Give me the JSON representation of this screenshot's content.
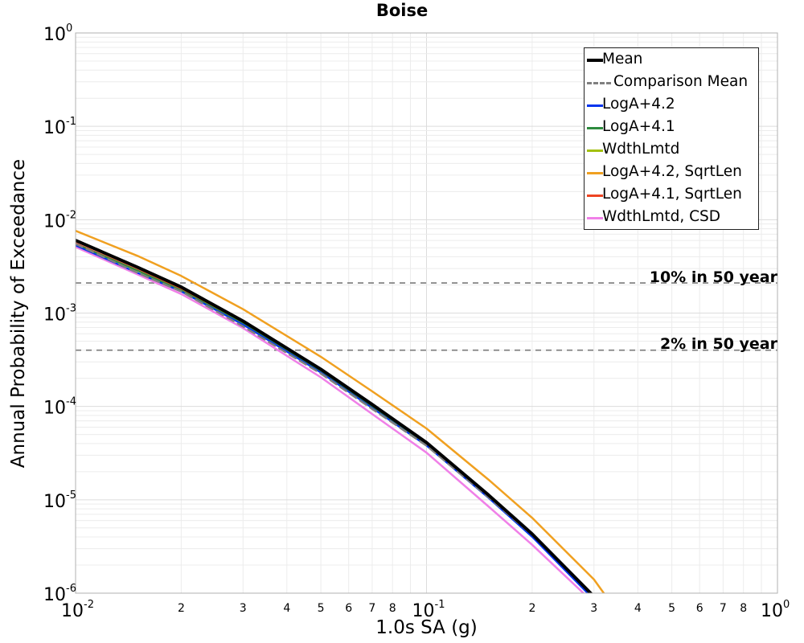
{
  "chart_data": {
    "type": "line",
    "title": "Boise",
    "xlabel": "1.0s SA (g)",
    "ylabel": "Annual Probability of Exceedance",
    "xscale": "log",
    "yscale": "log",
    "xlim": [
      0.01,
      1
    ],
    "ylim": [
      1e-06,
      1
    ],
    "grid": true,
    "legend_position": "top-right",
    "x_major_ticks": [
      {
        "base": "10",
        "exp": "-2"
      },
      {
        "base": "10",
        "exp": "-1"
      },
      {
        "base": "10",
        "exp": "0"
      }
    ],
    "x_minor_ticks": [
      "2",
      "3",
      "4",
      "5",
      "6",
      "7",
      "8"
    ],
    "y_major_ticks": [
      {
        "base": "10",
        "exp": "-6"
      },
      {
        "base": "10",
        "exp": "-5"
      },
      {
        "base": "10",
        "exp": "-4"
      },
      {
        "base": "10",
        "exp": "-3"
      },
      {
        "base": "10",
        "exp": "-2"
      },
      {
        "base": "10",
        "exp": "-1"
      },
      {
        "base": "10",
        "exp": "0"
      }
    ],
    "reference_lines": [
      {
        "label": "10% in 50 year",
        "y": 0.0021
      },
      {
        "label": "2% in 50 year",
        "y": 0.0004
      }
    ],
    "series": [
      {
        "name": "Mean",
        "color": "#000000",
        "style": "solid",
        "width": 4,
        "x": [
          0.01,
          0.015,
          0.02,
          0.03,
          0.05,
          0.07,
          0.1,
          0.15,
          0.2,
          0.3
        ],
        "y": [
          0.006,
          0.0031,
          0.0019,
          0.00082,
          0.00025,
          0.000105,
          4.1e-05,
          1.13e-05,
          4.3e-06,
          9.2e-07
        ]
      },
      {
        "name": "Comparison Mean",
        "color": "#808080",
        "style": "dashed",
        "width": 2.5,
        "x": [
          0.01,
          0.015,
          0.02,
          0.03,
          0.05,
          0.07,
          0.1,
          0.15,
          0.2,
          0.3
        ],
        "y": [
          0.0055,
          0.0027,
          0.0017,
          0.00072,
          0.000225,
          9.4e-05,
          3.8e-05,
          1.07e-05,
          4.2e-06,
          9.3e-07
        ]
      },
      {
        "name": "LogA+4.2",
        "color": "#0033ee",
        "style": "solid",
        "width": 2,
        "x": [
          0.01,
          0.015,
          0.02,
          0.03,
          0.05,
          0.07,
          0.1,
          0.15,
          0.2,
          0.3
        ],
        "y": [
          0.0053,
          0.0027,
          0.0017,
          0.00075,
          0.00023,
          9.6e-05,
          3.8e-05,
          1.05e-05,
          4e-06,
          8.5e-07
        ]
      },
      {
        "name": "LogA+4.1",
        "color": "#2e8b3e",
        "style": "solid",
        "width": 2,
        "x": [
          0.01,
          0.015,
          0.02,
          0.03,
          0.05,
          0.07,
          0.1,
          0.15,
          0.2,
          0.3
        ],
        "y": [
          0.0055,
          0.00285,
          0.00175,
          0.00077,
          0.000235,
          9.8e-05,
          3.9e-05,
          1.08e-05,
          4.1e-06,
          8.8e-07
        ]
      },
      {
        "name": "WdthLmtd",
        "color": "#a3c010",
        "style": "solid",
        "width": 2,
        "x": [
          0.01,
          0.015,
          0.02,
          0.03,
          0.05,
          0.07,
          0.1,
          0.15,
          0.2,
          0.3
        ],
        "y": [
          0.0055,
          0.00285,
          0.00175,
          0.00077,
          0.000235,
          9.8e-05,
          3.9e-05,
          1.08e-05,
          4.1e-06,
          8.8e-07
        ]
      },
      {
        "name": "LogA+4.2, SqrtLen",
        "color": "#f0a020",
        "style": "solid",
        "width": 2.5,
        "x": [
          0.01,
          0.015,
          0.02,
          0.03,
          0.05,
          0.07,
          0.1,
          0.15,
          0.2,
          0.3,
          0.32
        ],
        "y": [
          0.0076,
          0.0041,
          0.0025,
          0.0011,
          0.00034,
          0.000145,
          5.8e-05,
          1.65e-05,
          6.4e-06,
          1.4e-06,
          1e-06
        ]
      },
      {
        "name": "LogA+4.1, SqrtLen",
        "color": "#ee4422",
        "style": "solid",
        "width": 2,
        "x": [
          0.01,
          0.015,
          0.02,
          0.03,
          0.05,
          0.07,
          0.1,
          0.15,
          0.2,
          0.3
        ],
        "y": [
          0.0056,
          0.0029,
          0.0018,
          0.00078,
          0.00024,
          0.0001,
          4e-05,
          1.1e-05,
          4.2e-06,
          9e-07
        ]
      },
      {
        "name": "WdthLmtd, CSD",
        "color": "#f080e8",
        "style": "solid",
        "width": 2.5,
        "x": [
          0.01,
          0.015,
          0.02,
          0.03,
          0.05,
          0.07,
          0.1,
          0.15,
          0.2,
          0.28
        ],
        "y": [
          0.0051,
          0.0026,
          0.0016,
          0.00069,
          0.000205,
          8.3e-05,
          3.2e-05,
          8.5e-06,
          3.3e-06,
          1e-06
        ]
      }
    ]
  }
}
